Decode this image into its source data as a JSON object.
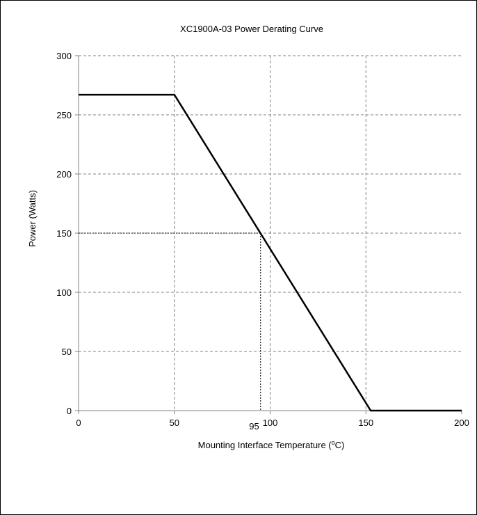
{
  "chart_data": {
    "type": "line",
    "title": "XC1900A-03 Power Derating Curve",
    "xlabel_prefix": "Mounting Interface Temperature (",
    "xlabel_sup": "o",
    "xlabel_suffix": "C)",
    "ylabel": "Power (Watts)",
    "xlim": [
      0,
      200
    ],
    "ylim": [
      0,
      300
    ],
    "x_ticks": [
      0,
      50,
      100,
      150,
      200
    ],
    "y_ticks": [
      0,
      50,
      100,
      150,
      200,
      250,
      300
    ],
    "grid": true,
    "legend": "none",
    "series": [
      {
        "x": [
          0,
          50,
          152.5,
          200
        ],
        "y": [
          267,
          267,
          0,
          0
        ]
      }
    ],
    "annotation": {
      "label": "95",
      "x": 95,
      "y": 150
    },
    "colors": {
      "line": "#000000",
      "grid": "#808080",
      "axis": "#808080",
      "guide": "#000000"
    }
  }
}
